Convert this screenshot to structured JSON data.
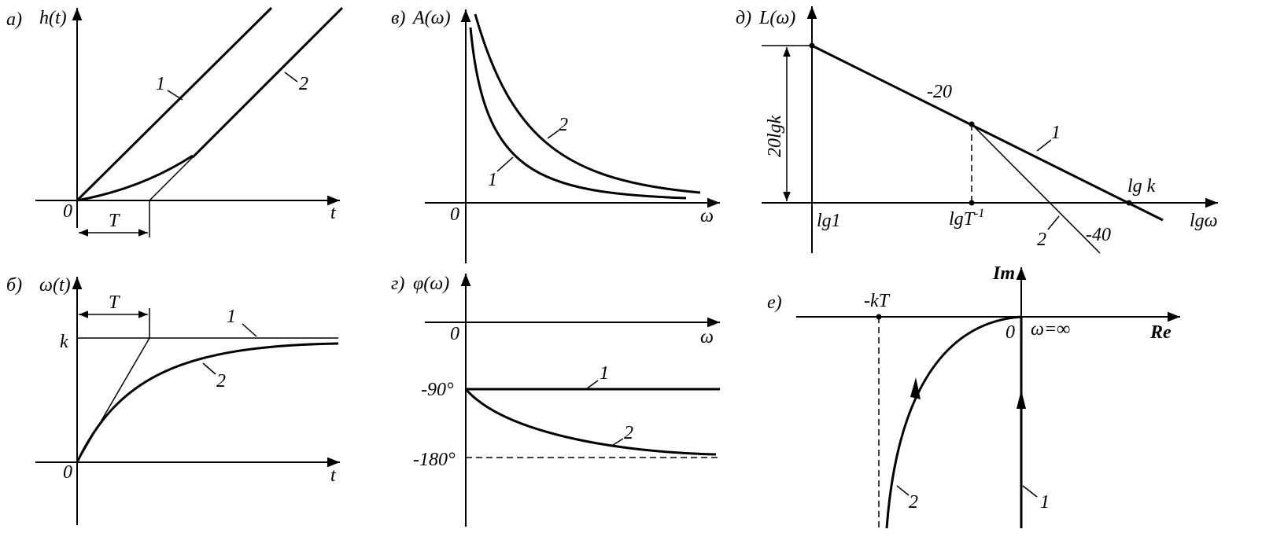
{
  "panels": {
    "a": {
      "tag": "а)",
      "y_axis": "h(t)",
      "x_axis": "t",
      "origin": "0",
      "period": "T",
      "curve_1": "1",
      "curve_2": "2"
    },
    "b": {
      "tag": "б)",
      "y_axis": "ω(t)",
      "x_axis": "t",
      "origin": "0",
      "level": "k",
      "period": "T",
      "curve_1": "1",
      "curve_2": "2"
    },
    "c": {
      "tag": "в)",
      "y_axis": "A(ω)",
      "x_axis": "ω",
      "origin": "0",
      "curve_1": "1",
      "curve_2": "2"
    },
    "d": {
      "tag": "г)",
      "y_axis": "φ(ω)",
      "x_axis": "ω",
      "origin": "0",
      "level_1": "-90°",
      "level_2": "-180°",
      "curve_1": "1",
      "curve_2": "2"
    },
    "e": {
      "tag": "д)",
      "y_axis": "L(ω)",
      "x_axis": "lgω",
      "gain": "20lgk",
      "slope_1": "-20",
      "slope_2": "-40",
      "curve_1": "1",
      "curve_2": "2",
      "tick_1": "lg1",
      "tick_2": {
        "base": "lgT",
        "sup": "-1"
      },
      "tick_3": "lg k"
    },
    "f": {
      "tag": "е)",
      "y_axis": "Im",
      "x_axis": "Re",
      "origin": "0",
      "point": "-kT",
      "infinity": "ω=∞",
      "curve_1": "1",
      "curve_2": "2"
    }
  }
}
